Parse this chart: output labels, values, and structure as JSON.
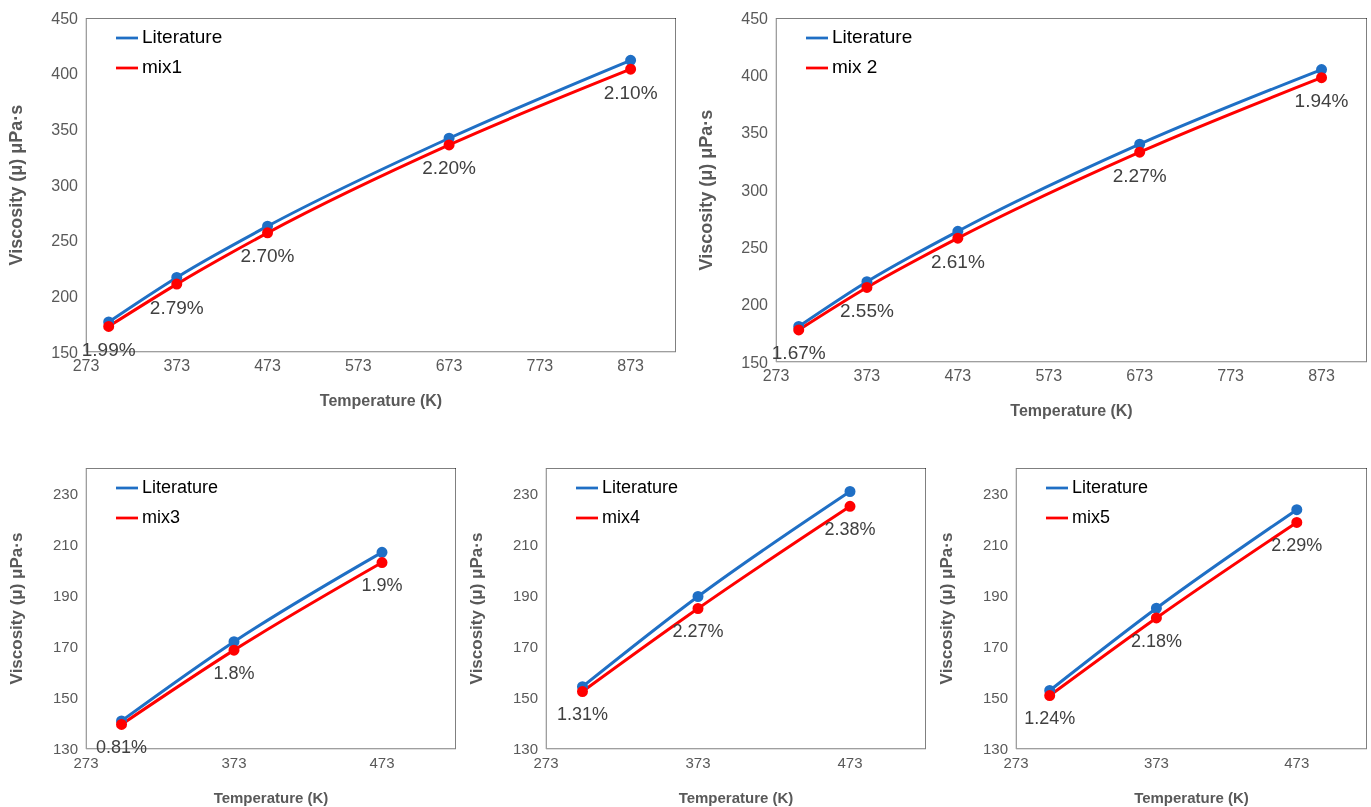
{
  "chart_data": [
    {
      "type": "line",
      "xlabel": "Temperature (K)",
      "ylabel": "Viscosity (μ) μPa·s",
      "x": [
        298,
        373,
        473,
        673,
        873
      ],
      "xlim": [
        273,
        923
      ],
      "xticks": [
        273,
        373,
        473,
        573,
        673,
        773,
        873
      ],
      "ylim": [
        150,
        450
      ],
      "yticks": [
        150,
        200,
        250,
        300,
        350,
        400,
        450
      ],
      "legend": "top left",
      "marker": "circle",
      "grid": false,
      "series": [
        {
          "name": "Literature",
          "color": "#1f6fc5",
          "values": [
            177,
            217,
            263,
            342,
            412
          ]
        },
        {
          "name": "mix1",
          "color": "#ff0000",
          "values": [
            173,
            211,
            257,
            336,
            404
          ]
        }
      ],
      "annotations": [
        {
          "text": "1.99%",
          "x": 298,
          "y": 173
        },
        {
          "text": "2.79%",
          "x": 373,
          "y": 211
        },
        {
          "text": "2.70%",
          "x": 473,
          "y": 257
        },
        {
          "text": "2.20%",
          "x": 673,
          "y": 336
        },
        {
          "text": "2.10%",
          "x": 873,
          "y": 404
        }
      ]
    },
    {
      "type": "line",
      "xlabel": "Temperature (K)",
      "ylabel": "Viscosity (μ) μPa·s",
      "x": [
        298,
        373,
        473,
        673,
        873
      ],
      "xlim": [
        273,
        923
      ],
      "xticks": [
        273,
        373,
        473,
        573,
        673,
        773,
        873
      ],
      "ylim": [
        150,
        450
      ],
      "yticks": [
        150,
        200,
        250,
        300,
        350,
        400,
        450
      ],
      "legend": "top left",
      "marker": "circle",
      "grid": false,
      "series": [
        {
          "name": "Literature",
          "color": "#1f6fc5",
          "values": [
            181,
            220,
            264,
            340,
            405
          ]
        },
        {
          "name": "mix 2",
          "color": "#ff0000",
          "values": [
            178,
            215,
            258,
            333,
            398
          ]
        }
      ],
      "annotations": [
        {
          "text": "1.67%",
          "x": 298,
          "y": 178
        },
        {
          "text": "2.55%",
          "x": 373,
          "y": 215
        },
        {
          "text": "2.61%",
          "x": 473,
          "y": 258
        },
        {
          "text": "2.27%",
          "x": 673,
          "y": 333
        },
        {
          "text": "1.94%",
          "x": 873,
          "y": 398
        }
      ]
    },
    {
      "type": "line",
      "xlabel": "Temperature (K)",
      "ylabel": "Viscosity (μ) μPa·s",
      "x": [
        297,
        373,
        473
      ],
      "xlim": [
        273,
        523
      ],
      "xticks": [
        273,
        373,
        473
      ],
      "ylim": [
        130,
        240
      ],
      "yticks": [
        130,
        150,
        170,
        190,
        210,
        230
      ],
      "legend": "top left",
      "marker": "circle",
      "grid": false,
      "series": [
        {
          "name": "Literature",
          "color": "#1f6fc5",
          "values": [
            141,
            172,
            207
          ]
        },
        {
          "name": "mix3",
          "color": "#ff0000",
          "values": [
            139.6,
            168.7,
            203
          ]
        }
      ],
      "annotations": [
        {
          "text": "0.81%",
          "x": 297,
          "y": 139.6
        },
        {
          "text": "1.8%",
          "x": 373,
          "y": 168.7
        },
        {
          "text": "1.9%",
          "x": 473,
          "y": 203
        }
      ]
    },
    {
      "type": "line",
      "xlabel": "Temperature (K)",
      "ylabel": "Viscosity (μ) μPa·s",
      "x": [
        297,
        373,
        473
      ],
      "xlim": [
        273,
        523
      ],
      "xticks": [
        273,
        373,
        473
      ],
      "ylim": [
        130,
        240
      ],
      "yticks": [
        130,
        150,
        170,
        190,
        210,
        230
      ],
      "legend": "top left",
      "marker": "circle",
      "grid": false,
      "series": [
        {
          "name": "Literature",
          "color": "#1f6fc5",
          "values": [
            154.4,
            189.7,
            230.8
          ]
        },
        {
          "name": "mix4",
          "color": "#ff0000",
          "values": [
            152.5,
            185,
            225
          ]
        }
      ],
      "annotations": [
        {
          "text": "1.31%",
          "x": 297,
          "y": 152.5
        },
        {
          "text": "2.27%",
          "x": 373,
          "y": 185
        },
        {
          "text": "2.38%",
          "x": 473,
          "y": 225
        }
      ]
    },
    {
      "type": "line",
      "xlabel": "Temperature (K)",
      "ylabel": "Viscosity (μ) μPa·s",
      "x": [
        297,
        373,
        473
      ],
      "xlim": [
        273,
        523
      ],
      "xticks": [
        273,
        373,
        473
      ],
      "ylim": [
        130,
        240
      ],
      "yticks": [
        130,
        150,
        170,
        190,
        210,
        230
      ],
      "legend": "top left",
      "marker": "circle",
      "grid": false,
      "series": [
        {
          "name": "Literature",
          "color": "#1f6fc5",
          "values": [
            152.9,
            185.1,
            223.7
          ]
        },
        {
          "name": "mix5",
          "color": "#ff0000",
          "values": [
            150.9,
            181.3,
            218.7
          ]
        }
      ],
      "annotations": [
        {
          "text": "1.24%",
          "x": 297,
          "y": 150.9
        },
        {
          "text": "2.18%",
          "x": 373,
          "y": 181.3
        },
        {
          "text": "2.29%",
          "x": 473,
          "y": 218.7
        }
      ]
    }
  ]
}
